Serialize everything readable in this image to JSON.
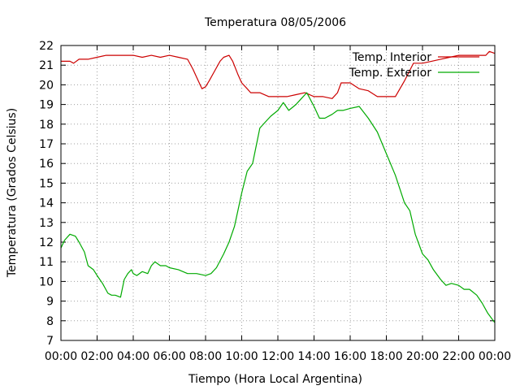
{
  "chart_data": {
    "type": "line",
    "title": "Temperatura 08/05/2006",
    "xlabel": "Tiempo (Hora Local Argentina)",
    "ylabel": "Temperatura (Grados Celsius)",
    "xlim": [
      0,
      24
    ],
    "ylim": [
      7,
      22
    ],
    "x_ticks": [
      "00:00",
      "02:00",
      "04:00",
      "06:00",
      "08:00",
      "10:00",
      "12:00",
      "14:00",
      "16:00",
      "18:00",
      "20:00",
      "22:00",
      "00:00"
    ],
    "y_ticks": [
      "7",
      "8",
      "9",
      "10",
      "11",
      "12",
      "13",
      "14",
      "15",
      "16",
      "17",
      "18",
      "19",
      "20",
      "21",
      "22"
    ],
    "grid": true,
    "legend_position": "top-right",
    "series": [
      {
        "name": "Temp. Interior",
        "color": "#cc0000",
        "x": [
          0,
          0.5,
          0.7,
          1.0,
          1.5,
          2.0,
          2.5,
          3.0,
          3.5,
          4.0,
          4.5,
          5.0,
          5.5,
          6.0,
          6.5,
          7.0,
          7.3,
          7.6,
          7.8,
          8.0,
          8.2,
          8.5,
          8.8,
          9.0,
          9.3,
          9.5,
          9.8,
          10.0,
          10.3,
          10.5,
          11.0,
          11.5,
          12.0,
          12.5,
          13.0,
          13.5,
          14.0,
          14.5,
          15.0,
          15.3,
          15.5,
          16.0,
          16.5,
          17.0,
          17.5,
          18.0,
          18.5,
          19.0,
          19.5,
          20.0,
          20.5,
          21.0,
          21.5,
          22.0,
          22.5,
          23.0,
          23.5,
          23.7,
          24.0
        ],
        "values": [
          21.2,
          21.2,
          21.1,
          21.3,
          21.3,
          21.4,
          21.5,
          21.5,
          21.5,
          21.5,
          21.4,
          21.5,
          21.4,
          21.5,
          21.4,
          21.3,
          20.8,
          20.2,
          19.8,
          19.9,
          20.2,
          20.7,
          21.2,
          21.4,
          21.5,
          21.2,
          20.5,
          20.1,
          19.8,
          19.6,
          19.6,
          19.4,
          19.4,
          19.4,
          19.5,
          19.6,
          19.4,
          19.4,
          19.3,
          19.6,
          20.1,
          20.1,
          19.8,
          19.7,
          19.4,
          19.4,
          19.4,
          20.2,
          21.1,
          21.1,
          21.2,
          21.3,
          21.4,
          21.5,
          21.5,
          21.5,
          21.5,
          21.7,
          21.6
        ]
      },
      {
        "name": "Temp. Exterior",
        "color": "#00aa00",
        "x": [
          0,
          0.2,
          0.5,
          0.8,
          1.0,
          1.3,
          1.5,
          1.8,
          2.0,
          2.3,
          2.6,
          2.8,
          3.0,
          3.3,
          3.5,
          3.7,
          3.9,
          4.0,
          4.2,
          4.5,
          4.8,
          5.0,
          5.2,
          5.5,
          5.8,
          6.0,
          6.5,
          7.0,
          7.5,
          8.0,
          8.3,
          8.6,
          9.0,
          9.3,
          9.6,
          10.0,
          10.3,
          10.6,
          11.0,
          11.3,
          11.6,
          12.0,
          12.3,
          12.6,
          13.0,
          13.3,
          13.6,
          14.0,
          14.3,
          14.6,
          15.0,
          15.3,
          15.6,
          16.0,
          16.5,
          17.0,
          17.5,
          18.0,
          18.5,
          19.0,
          19.3,
          19.6,
          20.0,
          20.3,
          20.6,
          21.0,
          21.3,
          21.6,
          22.0,
          22.3,
          22.6,
          23.0,
          23.3,
          23.6,
          24.0
        ],
        "values": [
          11.7,
          12.1,
          12.4,
          12.3,
          12.0,
          11.5,
          10.8,
          10.6,
          10.3,
          9.9,
          9.4,
          9.3,
          9.3,
          9.2,
          10.1,
          10.4,
          10.6,
          10.4,
          10.3,
          10.5,
          10.4,
          10.8,
          11.0,
          10.8,
          10.8,
          10.7,
          10.6,
          10.4,
          10.4,
          10.3,
          10.4,
          10.7,
          11.4,
          12.0,
          12.8,
          14.5,
          15.6,
          16.0,
          17.8,
          18.1,
          18.4,
          18.7,
          19.1,
          18.7,
          19.0,
          19.3,
          19.6,
          18.9,
          18.3,
          18.3,
          18.5,
          18.7,
          18.7,
          18.8,
          18.9,
          18.3,
          17.6,
          16.5,
          15.4,
          14.0,
          13.6,
          12.4,
          11.4,
          11.1,
          10.6,
          10.1,
          9.8,
          9.9,
          9.8,
          9.6,
          9.6,
          9.3,
          8.9,
          8.4,
          7.9
        ]
      }
    ]
  }
}
